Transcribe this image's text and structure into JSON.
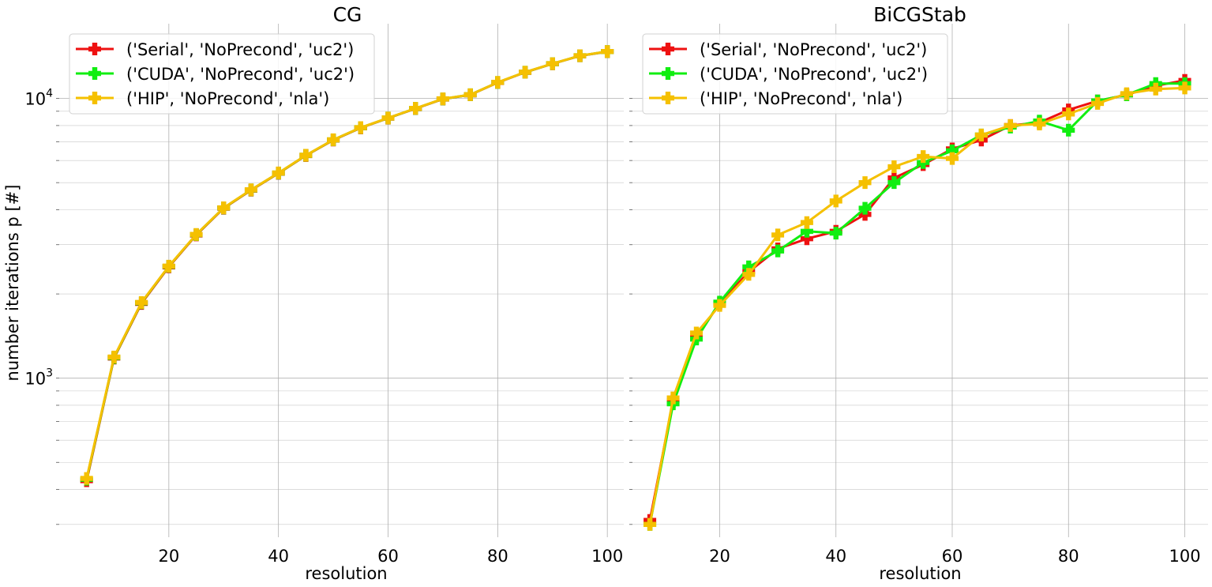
{
  "figure": {
    "ylabel": "number iterations p [#]",
    "ytick_labels": [
      {
        "value": 1000,
        "base": "10",
        "exp": "3"
      },
      {
        "value": 10000,
        "base": "10",
        "exp": "4"
      }
    ],
    "series_colors": {
      "Serial": "#ee1111",
      "CUDA": "#11ee11",
      "HIP": "#f5c000"
    }
  },
  "chart_data": [
    {
      "type": "line",
      "title": "CG",
      "xlabel": "resolution",
      "ylabel": "number iterations p [#]",
      "yscale": "log",
      "xlim": [
        0,
        103
      ],
      "ylim": [
        270,
        18500
      ],
      "xticks": [
        20,
        40,
        60,
        80,
        100
      ],
      "grid": true,
      "legend_position": "top-left",
      "marker": "plus",
      "x": [
        5,
        10,
        15,
        20,
        25,
        30,
        35,
        40,
        45,
        50,
        55,
        60,
        65,
        70,
        75,
        80,
        85,
        90,
        95,
        100
      ],
      "series": [
        {
          "name": "('Serial', 'NoPrecond', 'uc2')",
          "color": "#ee1111",
          "values": [
            430,
            1180,
            1850,
            2500,
            3250,
            4050,
            4700,
            5400,
            6250,
            7100,
            7850,
            8500,
            9200,
            9950,
            10300,
            11400,
            12400,
            13300,
            14200,
            14700
          ]
        },
        {
          "name": "('CUDA', 'NoPrecond', 'uc2')",
          "color": "#11ee11",
          "values": [
            435,
            1185,
            1860,
            2510,
            3260,
            4060,
            4710,
            5410,
            6260,
            7110,
            7860,
            8510,
            9210,
            9960,
            10310,
            11410,
            12410,
            13310,
            14210,
            14710
          ]
        },
        {
          "name": "('HIP', 'NoPrecond', 'nla')",
          "color": "#f5c000",
          "values": [
            438,
            1190,
            1865,
            2515,
            3265,
            4065,
            4715,
            5415,
            6265,
            7115,
            7865,
            8515,
            9215,
            9965,
            10315,
            11415,
            12415,
            13315,
            14215,
            14715
          ]
        }
      ]
    },
    {
      "type": "line",
      "title": "BiCGStab",
      "xlabel": "resolution",
      "ylabel": "",
      "yscale": "log",
      "xlim": [
        5,
        104
      ],
      "ylim": [
        270,
        18500
      ],
      "xticks": [
        20,
        40,
        60,
        80,
        100
      ],
      "grid": true,
      "legend_position": "top-left",
      "marker": "plus",
      "x": [
        8,
        12,
        16,
        20,
        25,
        30,
        35,
        40,
        45,
        50,
        55,
        60,
        65,
        70,
        75,
        80,
        85,
        90,
        95,
        100
      ],
      "series": [
        {
          "name": "('Serial', 'NoPrecond', 'uc2')",
          "color": "#ee1111",
          "values": [
            310,
            830,
            1400,
            1850,
            2400,
            2900,
            3150,
            3350,
            3850,
            5200,
            5800,
            6600,
            7100,
            8000,
            8200,
            9100,
            9800,
            10300,
            11100,
            11600
          ]
        },
        {
          "name": "('CUDA', 'NoPrecond', 'uc2')",
          "color": "#11ee11",
          "values": [
            300,
            810,
            1380,
            1870,
            2500,
            2850,
            3350,
            3300,
            4050,
            5000,
            5900,
            6500,
            7400,
            7900,
            8300,
            7700,
            9800,
            10300,
            11300,
            11300
          ]
        },
        {
          "name": "('HIP', 'NoPrecond', 'nla')",
          "color": "#f5c000",
          "values": [
            300,
            850,
            1450,
            1820,
            2350,
            3250,
            3600,
            4300,
            5000,
            5700,
            6200,
            6100,
            7400,
            8000,
            8100,
            8800,
            9600,
            10400,
            10800,
            10900
          ]
        }
      ]
    }
  ]
}
